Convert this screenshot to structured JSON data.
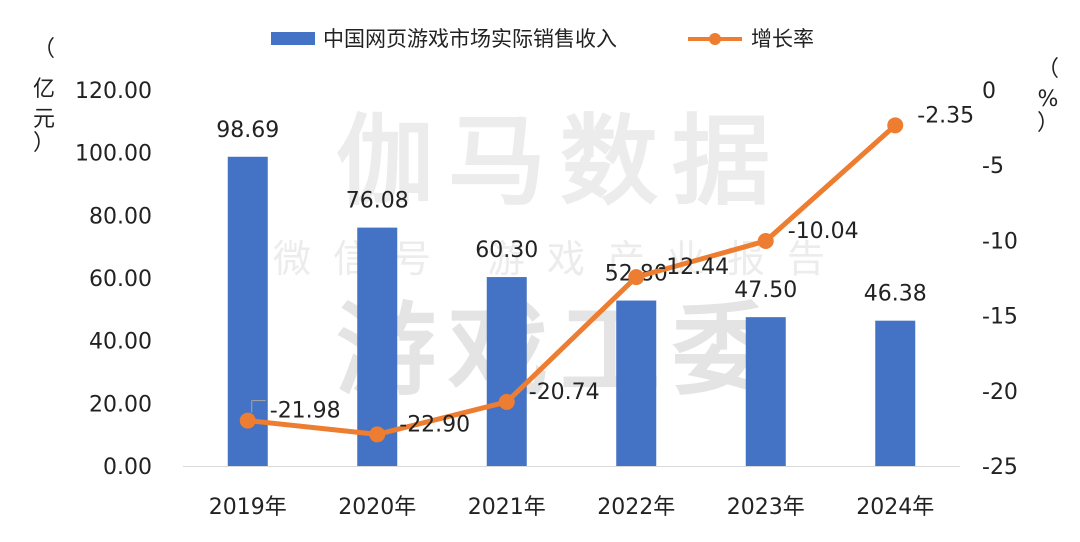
{
  "chart_data": {
    "type": "bar",
    "categories": [
      "2019年",
      "2020年",
      "2021年",
      "2022年",
      "2023年",
      "2024年"
    ],
    "series": [
      {
        "name": "中国网页游戏市场实际销售收入",
        "type": "bar",
        "axis": "left",
        "color": "#4472c4",
        "values": [
          98.69,
          76.08,
          60.3,
          52.8,
          47.5,
          46.38
        ],
        "labels": [
          "98.69",
          "76.08",
          "60.30",
          "52.80",
          "47.50",
          "46.38"
        ]
      },
      {
        "name": "增长率",
        "type": "line",
        "axis": "right",
        "color": "#ed7d31",
        "values": [
          -21.98,
          -22.9,
          -20.74,
          -12.44,
          -10.04,
          -2.35
        ],
        "labels": [
          "-21.98",
          "-22.90",
          "-20.74",
          "-12.44",
          "-10.04",
          "-2.35"
        ]
      }
    ],
    "left_axis": {
      "unit_label": [
        "（",
        "亿",
        "元",
        "）"
      ],
      "ylim": [
        0,
        120
      ],
      "ticks": [
        "0.00",
        "20.00",
        "40.00",
        "60.00",
        "80.00",
        "100.00",
        "120.00"
      ]
    },
    "right_axis": {
      "unit_label": [
        "（",
        "%",
        "）"
      ],
      "ylim": [
        -25,
        0
      ],
      "ticks": [
        "-25",
        "-20",
        "-15",
        "-10",
        "-5",
        "0"
      ]
    },
    "legend_position": "top-center"
  },
  "watermark": {
    "line1": "伽马数据",
    "line2": "微信号  游戏产业报告",
    "line3": "游戏工委"
  }
}
